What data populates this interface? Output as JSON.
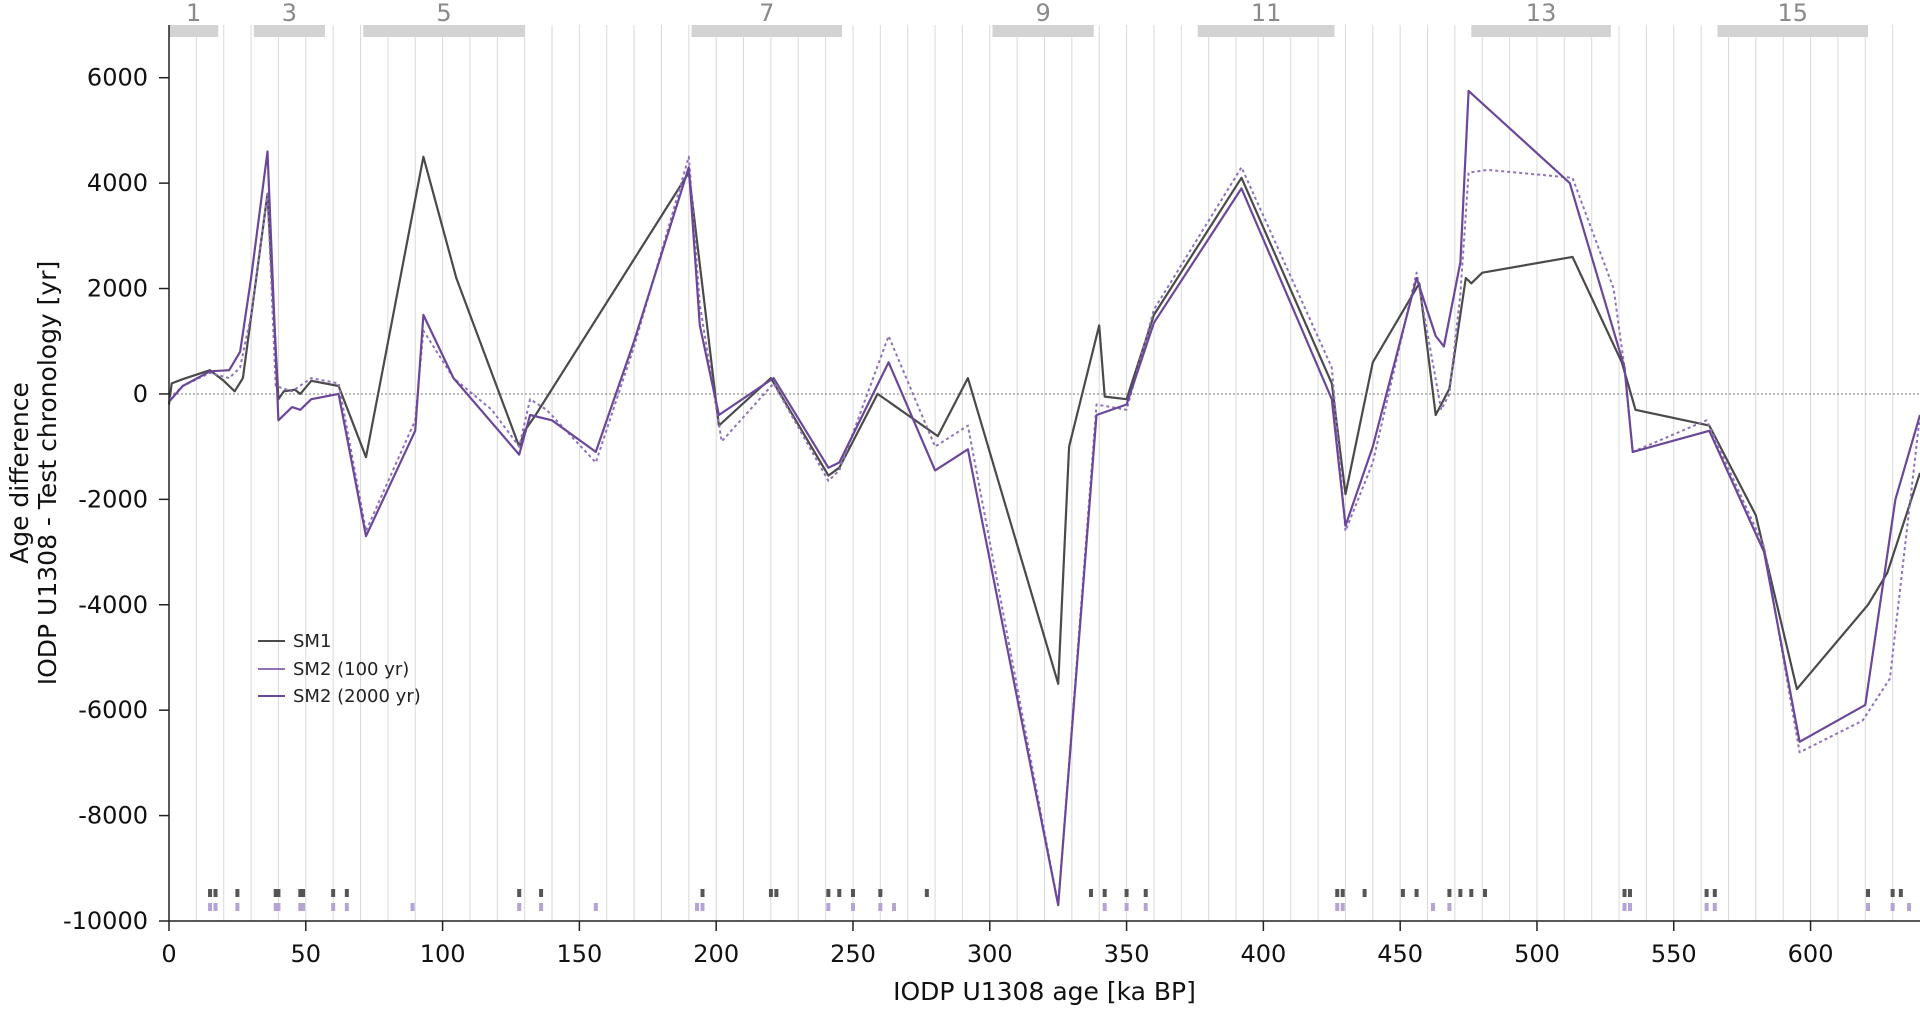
{
  "chart_data": {
    "type": "line",
    "xlabel": "IODP U1308 age [ka BP]",
    "ylabel_lines": [
      "Age difference",
      "IODP U1308 - Test chronology [yr]"
    ],
    "xlim": [
      0,
      640
    ],
    "ylim": [
      -10000,
      7000
    ],
    "x_ticks": [
      0,
      50,
      100,
      150,
      200,
      250,
      300,
      350,
      400,
      450,
      500,
      550,
      600
    ],
    "y_ticks": [
      6000,
      4000,
      2000,
      0,
      -2000,
      -4000,
      -6000,
      -8000,
      -10000
    ],
    "x_tick_labels": [
      "0",
      "50",
      "100",
      "150",
      "200",
      "250",
      "300",
      "350",
      "400",
      "450",
      "500",
      "550",
      "600"
    ],
    "y_tick_labels": [
      "6000",
      "4000",
      "2000",
      "0",
      "-2000",
      "-4000",
      "-6000",
      "-8000",
      "-10000"
    ],
    "zero_line": true,
    "vertical_grid_spacing": 10,
    "mis_stages": [
      {
        "label": "1",
        "start": 0,
        "end": 18
      },
      {
        "label": "3",
        "start": 31,
        "end": 57
      },
      {
        "label": "5",
        "start": 71,
        "end": 130
      },
      {
        "label": "7",
        "start": 191,
        "end": 246
      },
      {
        "label": "9",
        "start": 301,
        "end": 338
      },
      {
        "label": "11",
        "start": 376,
        "end": 426
      },
      {
        "label": "13",
        "start": 476,
        "end": 527
      },
      {
        "label": "15",
        "start": 566,
        "end": 621
      }
    ],
    "series": [
      {
        "name": "SM1",
        "color": "#4a4a4a",
        "style": "solid",
        "points": [
          [
            0,
            -200
          ],
          [
            1,
            200
          ],
          [
            5,
            280
          ],
          [
            15,
            450
          ],
          [
            20,
            250
          ],
          [
            24,
            50
          ],
          [
            27,
            300
          ],
          [
            36,
            3800
          ],
          [
            40,
            -100
          ],
          [
            42,
            50
          ],
          [
            46,
            80
          ],
          [
            48,
            0
          ],
          [
            52,
            250
          ],
          [
            62,
            150
          ],
          [
            72,
            -1200
          ],
          [
            93,
            4500
          ],
          [
            105,
            2200
          ],
          [
            128,
            -1000
          ],
          [
            130,
            -700
          ],
          [
            134,
            -400
          ],
          [
            190,
            4200
          ],
          [
            196,
            1600
          ],
          [
            201,
            -600
          ],
          [
            220,
            300
          ],
          [
            241,
            -1550
          ],
          [
            245,
            -1400
          ],
          [
            259,
            0
          ],
          [
            281,
            -800
          ],
          [
            292,
            300
          ],
          [
            325,
            -5500
          ],
          [
            329,
            -1000
          ],
          [
            340,
            1300
          ],
          [
            342,
            -50
          ],
          [
            350,
            -100
          ],
          [
            360,
            1500
          ],
          [
            392,
            4100
          ],
          [
            425,
            200
          ],
          [
            430,
            -1900
          ],
          [
            440,
            600
          ],
          [
            457,
            2100
          ],
          [
            463,
            -400
          ],
          [
            468,
            100
          ],
          [
            474,
            2200
          ],
          [
            476,
            2100
          ],
          [
            480,
            2300
          ],
          [
            513,
            2600
          ],
          [
            531,
            600
          ],
          [
            536,
            -300
          ],
          [
            563,
            -600
          ],
          [
            580,
            -2300
          ],
          [
            595,
            -5600
          ],
          [
            621,
            -4000
          ],
          [
            628,
            -3400
          ],
          [
            640,
            -1500
          ]
        ]
      },
      {
        "name": "SM2 (100 yr)",
        "color": "#8f72b8",
        "style": "dotted",
        "points": [
          [
            0,
            -100
          ],
          [
            5,
            150
          ],
          [
            15,
            400
          ],
          [
            22,
            300
          ],
          [
            26,
            500
          ],
          [
            30,
            1500
          ],
          [
            36,
            3800
          ],
          [
            39,
            150
          ],
          [
            45,
            50
          ],
          [
            52,
            300
          ],
          [
            62,
            200
          ],
          [
            72,
            -2600
          ],
          [
            90,
            -500
          ],
          [
            93,
            1200
          ],
          [
            104,
            300
          ],
          [
            118,
            -300
          ],
          [
            128,
            -1000
          ],
          [
            132,
            -100
          ],
          [
            138,
            -300
          ],
          [
            156,
            -1300
          ],
          [
            170,
            900
          ],
          [
            190,
            4500
          ],
          [
            194,
            1700
          ],
          [
            202,
            -900
          ],
          [
            221,
            200
          ],
          [
            241,
            -1650
          ],
          [
            245,
            -1450
          ],
          [
            263,
            1100
          ],
          [
            280,
            -1000
          ],
          [
            292,
            -600
          ],
          [
            325,
            -9700
          ],
          [
            339,
            -200
          ],
          [
            350,
            -300
          ],
          [
            360,
            1600
          ],
          [
            392,
            4300
          ],
          [
            425,
            500
          ],
          [
            430,
            -2600
          ],
          [
            440,
            -1300
          ],
          [
            456,
            2300
          ],
          [
            465,
            -300
          ],
          [
            468,
            0
          ],
          [
            472,
            1900
          ],
          [
            475,
            4200
          ],
          [
            482,
            4250
          ],
          [
            513,
            4100
          ],
          [
            528,
            2000
          ],
          [
            532,
            500
          ],
          [
            535,
            -1100
          ],
          [
            562,
            -500
          ],
          [
            583,
            -2900
          ],
          [
            596,
            -6800
          ],
          [
            619,
            -6200
          ],
          [
            629,
            -5400
          ],
          [
            640,
            -400
          ]
        ]
      },
      {
        "name": "SM2 (2000 yr)",
        "color": "#6b4799",
        "style": "solid",
        "points": [
          [
            0,
            -150
          ],
          [
            5,
            150
          ],
          [
            15,
            430
          ],
          [
            22,
            450
          ],
          [
            26,
            800
          ],
          [
            30,
            2200
          ],
          [
            36,
            4600
          ],
          [
            40,
            -500
          ],
          [
            45,
            -250
          ],
          [
            48,
            -300
          ],
          [
            52,
            -100
          ],
          [
            62,
            0
          ],
          [
            72,
            -2700
          ],
          [
            90,
            -700
          ],
          [
            93,
            1500
          ],
          [
            104,
            300
          ],
          [
            128,
            -1150
          ],
          [
            132,
            -400
          ],
          [
            140,
            -500
          ],
          [
            156,
            -1100
          ],
          [
            170,
            1000
          ],
          [
            190,
            4300
          ],
          [
            194,
            1300
          ],
          [
            201,
            -400
          ],
          [
            221,
            300
          ],
          [
            241,
            -1400
          ],
          [
            245,
            -1300
          ],
          [
            263,
            600
          ],
          [
            280,
            -1450
          ],
          [
            292,
            -1050
          ],
          [
            325,
            -9700
          ],
          [
            339,
            -400
          ],
          [
            350,
            -200
          ],
          [
            360,
            1350
          ],
          [
            392,
            3900
          ],
          [
            425,
            -100
          ],
          [
            430,
            -2500
          ],
          [
            440,
            -1000
          ],
          [
            456,
            2200
          ],
          [
            463,
            1100
          ],
          [
            466,
            900
          ],
          [
            472,
            2500
          ],
          [
            475,
            5750
          ],
          [
            512,
            4000
          ],
          [
            532,
            500
          ],
          [
            535,
            -1100
          ],
          [
            563,
            -700
          ],
          [
            583,
            -3000
          ],
          [
            596,
            -6600
          ],
          [
            620,
            -5900
          ],
          [
            631,
            -2000
          ],
          [
            640,
            -400
          ]
        ]
      }
    ],
    "tie_points": {
      "SM1": [
        15,
        17,
        25,
        39,
        40,
        48,
        49,
        60,
        65,
        128,
        136,
        195,
        220,
        222,
        241,
        245,
        250,
        260,
        277,
        337,
        342,
        350,
        357,
        427,
        429,
        437,
        451,
        456,
        468,
        472,
        476,
        481,
        532,
        534,
        562,
        565,
        621,
        630,
        633
      ],
      "SM2": [
        15,
        17,
        25,
        39,
        40,
        48,
        49,
        60,
        65,
        89,
        128,
        136,
        156,
        193,
        195,
        241,
        250,
        260,
        265,
        342,
        350,
        357,
        427,
        429,
        462,
        468,
        532,
        534,
        562,
        565,
        621,
        630,
        636
      ]
    },
    "legend": {
      "placement": "lower-left",
      "entries": [
        "SM1",
        "SM2 (100 yr)",
        "SM2 (2000 yr)"
      ]
    }
  }
}
